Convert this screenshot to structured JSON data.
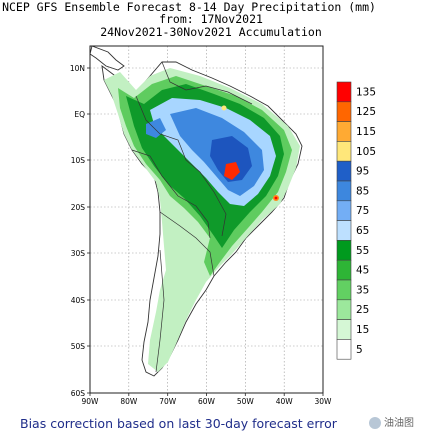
{
  "title": {
    "line1": "NCEP GFS Ensemble Forecast 8-14 Day Precipitation (mm)",
    "line2": "from: 17Nov2021",
    "line3": "24Nov2021-30Nov2021 Accumulation"
  },
  "y_ticks": [
    "10N",
    "EQ",
    "10S",
    "20S",
    "30S",
    "40S",
    "50S",
    "60S"
  ],
  "x_ticks": [
    "90W",
    "80W",
    "70W",
    "60W",
    "50W",
    "40W",
    "30W"
  ],
  "legend": {
    "levels": [
      "135",
      "125",
      "115",
      "105",
      "95",
      "85",
      "75",
      "65",
      "55",
      "45",
      "35",
      "25",
      "15",
      "5"
    ],
    "colors": [
      "#ff0000",
      "#ff6600",
      "#ffaa33",
      "#ffe77a",
      "#1f5fc8",
      "#3d87de",
      "#73aef5",
      "#bde0ff",
      "#009a1e",
      "#2eb536",
      "#62d062",
      "#9ce89c",
      "#d5f7d5",
      "#ffffff"
    ]
  },
  "footer": "Bias correction based on last 30-day forecast error",
  "watermark": "油油图"
}
